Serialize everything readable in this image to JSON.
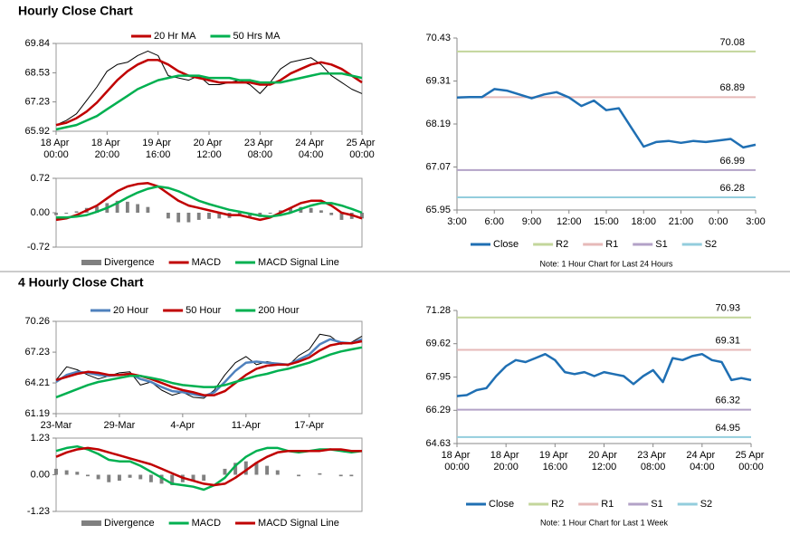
{
  "sections": [
    "Hourly Close Chart",
    "4 Hourly Close Chart"
  ],
  "chart_data": [
    {
      "type": "line",
      "legend": "top",
      "categories": [
        "18 Apr 00:00",
        null,
        null,
        null,
        null,
        "18 Apr 20:00",
        null,
        null,
        null,
        null,
        "19 Apr 16:00",
        null,
        null,
        null,
        null,
        "20 Apr 12:00",
        null,
        null,
        null,
        null,
        "23 Apr 08:00",
        null,
        null,
        null,
        null,
        "24 Apr 04:00",
        null,
        null,
        null,
        null,
        "25 Apr 00:00"
      ],
      "ylim": [
        65.92,
        69.84
      ],
      "yticks": [
        69.84,
        68.53,
        67.23,
        65.92
      ],
      "price": {
        "color": "#000000",
        "values": [
          66.2,
          66.4,
          66.7,
          67.3,
          67.9,
          68.6,
          68.9,
          69.0,
          69.3,
          69.5,
          69.3,
          68.4,
          68.3,
          68.2,
          68.4,
          68.0,
          68.0,
          68.1,
          68.2,
          68.0,
          67.6,
          68.1,
          68.7,
          69.0,
          69.1,
          69.2,
          68.9,
          68.4,
          68.1,
          67.8,
          67.6
        ]
      },
      "series": [
        {
          "name": "20 Hr MA",
          "color": "#c00000",
          "values": [
            66.2,
            66.3,
            66.5,
            66.8,
            67.2,
            67.7,
            68.2,
            68.6,
            68.9,
            69.1,
            69.1,
            68.9,
            68.6,
            68.4,
            68.3,
            68.2,
            68.1,
            68.1,
            68.1,
            68.1,
            68.0,
            68.0,
            68.2,
            68.5,
            68.7,
            68.9,
            69.0,
            68.9,
            68.7,
            68.4,
            68.1
          ]
        },
        {
          "name": "50 Hrs MA",
          "color": "#00b050",
          "values": [
            66.0,
            66.1,
            66.2,
            66.4,
            66.6,
            66.9,
            67.2,
            67.5,
            67.8,
            68.0,
            68.2,
            68.3,
            68.4,
            68.4,
            68.4,
            68.3,
            68.3,
            68.3,
            68.2,
            68.2,
            68.1,
            68.1,
            68.1,
            68.2,
            68.3,
            68.4,
            68.5,
            68.5,
            68.5,
            68.4,
            68.3
          ]
        }
      ]
    },
    {
      "type": "line",
      "legend": "bottom",
      "categories": [
        null,
        null,
        null,
        null,
        null,
        null,
        null,
        null,
        null,
        null,
        null,
        null,
        null,
        null,
        null,
        null,
        null,
        null,
        null,
        null,
        null,
        null,
        null,
        null,
        null,
        null,
        null,
        null,
        null,
        null,
        null
      ],
      "ylim": [
        -0.72,
        0.72
      ],
      "yticks": [
        0.72,
        {
          "value": 0,
          "label": "0.00"
        },
        -0.72
      ],
      "series": [
        {
          "name": "Divergence",
          "kind": "bar",
          "color": "#808080",
          "values": [
            -0.05,
            -0.02,
            0.03,
            0.1,
            0.13,
            0.2,
            0.25,
            0.23,
            0.18,
            0.12,
            0.0,
            -0.12,
            -0.2,
            -0.2,
            -0.15,
            -0.13,
            -0.12,
            -0.11,
            -0.07,
            -0.08,
            -0.09,
            -0.02,
            0.05,
            0.1,
            0.12,
            0.1,
            0.05,
            -0.05,
            -0.15,
            -0.13,
            -0.12
          ]
        },
        {
          "name": "MACD",
          "color": "#c00000",
          "values": [
            -0.15,
            -0.12,
            -0.05,
            0.05,
            0.15,
            0.3,
            0.45,
            0.55,
            0.6,
            0.62,
            0.55,
            0.4,
            0.25,
            0.15,
            0.1,
            0.05,
            0.0,
            -0.05,
            -0.05,
            -0.1,
            -0.15,
            -0.1,
            0.0,
            0.1,
            0.2,
            0.25,
            0.25,
            0.15,
            0.0,
            -0.05,
            -0.12
          ]
        },
        {
          "name": "MACD Signal Line",
          "color": "#00b050",
          "values": [
            -0.1,
            -0.1,
            -0.08,
            -0.05,
            0.02,
            0.1,
            0.2,
            0.32,
            0.42,
            0.5,
            0.55,
            0.52,
            0.45,
            0.35,
            0.25,
            0.18,
            0.12,
            0.06,
            0.02,
            -0.02,
            -0.06,
            -0.08,
            -0.05,
            0.0,
            0.08,
            0.15,
            0.2,
            0.2,
            0.15,
            0.08,
            0.0
          ]
        }
      ]
    },
    {
      "type": "line",
      "legend": "bottom",
      "note": "Note: 1 Hour Chart for Last 24 Hours",
      "categories": [
        "3:00",
        null,
        null,
        "6:00",
        null,
        null,
        "9:00",
        null,
        null,
        "12:00",
        null,
        null,
        "15:00",
        null,
        null,
        "18:00",
        null,
        null,
        "21:00",
        null,
        null,
        "0:00",
        null,
        null,
        "3:00"
      ],
      "ylim": [
        65.95,
        70.43
      ],
      "yticks": [
        70.43,
        69.31,
        68.19,
        67.07,
        65.95
      ],
      "series": [
        {
          "name": "Close",
          "color": "#1f6fb3",
          "values": [
            68.88,
            68.89,
            68.89,
            69.1,
            69.06,
            68.96,
            68.86,
            68.96,
            69.02,
            68.88,
            68.66,
            68.8,
            68.55,
            68.6,
            68.1,
            67.6,
            67.72,
            67.75,
            67.7,
            67.75,
            67.72,
            67.76,
            67.8,
            67.58,
            67.65
          ]
        }
      ],
      "levels": [
        {
          "name": "R2",
          "color": "#c3d69b",
          "value": 70.08
        },
        {
          "name": "R1",
          "color": "#e6b9b8",
          "value": 68.89
        },
        {
          "name": "S1",
          "color": "#b3a2c7",
          "value": 66.99
        },
        {
          "name": "S2",
          "color": "#93cddd",
          "value": 66.28
        }
      ]
    },
    {
      "type": "line",
      "legend": "top",
      "categories": [
        "23-Mar",
        null,
        null,
        null,
        null,
        null,
        "29-Mar",
        null,
        null,
        null,
        null,
        null,
        "4-Apr",
        null,
        null,
        null,
        null,
        null,
        "11-Apr",
        null,
        null,
        null,
        null,
        null,
        "17-Apr",
        null,
        null,
        null,
        null,
        null
      ],
      "ylim": [
        61.19,
        70.26
      ],
      "yticks": [
        70.26,
        67.23,
        64.21,
        61.19
      ],
      "price": {
        "color": "#000000",
        "values": [
          64.5,
          65.8,
          65.5,
          65.0,
          64.6,
          64.9,
          65.2,
          65.3,
          64.0,
          64.3,
          63.5,
          63.0,
          63.3,
          62.8,
          62.7,
          63.5,
          65.0,
          66.2,
          66.8,
          66.0,
          66.3,
          66.1,
          65.9,
          66.9,
          67.5,
          69.0,
          68.8,
          68.0,
          68.2,
          68.8
        ]
      },
      "series": [
        {
          "name": "20 Hour",
          "color": "#4f81bd",
          "values": [
            64.3,
            65.0,
            65.3,
            65.2,
            65.0,
            64.9,
            65.0,
            65.1,
            64.6,
            64.3,
            63.8,
            63.4,
            63.3,
            63.1,
            62.9,
            63.3,
            64.3,
            65.4,
            66.2,
            66.3,
            66.2,
            66.1,
            66.0,
            66.5,
            67.0,
            68.0,
            68.5,
            68.2,
            68.1,
            68.5
          ]
        },
        {
          "name": "50 Hour",
          "color": "#c00000",
          "values": [
            64.5,
            64.8,
            65.1,
            65.3,
            65.2,
            65.0,
            65.0,
            65.1,
            64.9,
            64.6,
            64.2,
            63.8,
            63.5,
            63.3,
            63.0,
            63.0,
            63.4,
            64.2,
            65.0,
            65.6,
            65.9,
            66.0,
            66.0,
            66.3,
            66.7,
            67.4,
            67.9,
            68.1,
            68.1,
            68.3
          ]
        },
        {
          "name": "200 Hour",
          "color": "#00b050",
          "values": [
            62.8,
            63.2,
            63.6,
            64.0,
            64.3,
            64.5,
            64.7,
            64.9,
            64.9,
            64.7,
            64.5,
            64.2,
            64.0,
            63.9,
            63.8,
            63.8,
            64.0,
            64.3,
            64.6,
            64.9,
            65.1,
            65.4,
            65.6,
            65.9,
            66.2,
            66.6,
            67.0,
            67.3,
            67.5,
            67.7
          ]
        }
      ]
    },
    {
      "type": "line",
      "legend": "bottom",
      "categories": [
        null,
        null,
        null,
        null,
        null,
        null,
        null,
        null,
        null,
        null,
        null,
        null,
        null,
        null,
        null,
        null,
        null,
        null,
        null,
        null,
        null,
        null,
        null,
        null,
        null,
        null,
        null,
        null,
        null,
        null
      ],
      "ylim": [
        -1.23,
        1.23
      ],
      "yticks": [
        1.23,
        {
          "value": 0,
          "label": "0.00"
        },
        -1.23
      ],
      "series": [
        {
          "name": "Divergence",
          "kind": "bar",
          "color": "#808080",
          "values": [
            0.2,
            0.15,
            0.1,
            -0.05,
            -0.15,
            -0.25,
            -0.2,
            -0.1,
            -0.15,
            -0.25,
            -0.3,
            -0.35,
            -0.25,
            -0.2,
            -0.2,
            0.0,
            0.2,
            0.4,
            0.45,
            0.4,
            0.3,
            0.15,
            0.0,
            -0.05,
            0.0,
            0.05,
            0.0,
            -0.05,
            -0.05,
            0.0
          ]
        },
        {
          "name": "MACD",
          "color": "#00b050",
          "values": [
            0.8,
            0.9,
            0.95,
            0.85,
            0.7,
            0.5,
            0.45,
            0.45,
            0.3,
            0.1,
            -0.1,
            -0.3,
            -0.35,
            -0.4,
            -0.5,
            -0.35,
            -0.1,
            0.3,
            0.6,
            0.8,
            0.9,
            0.9,
            0.8,
            0.75,
            0.8,
            0.85,
            0.85,
            0.8,
            0.75,
            0.8
          ]
        },
        {
          "name": "MACD Signal Line",
          "color": "#c00000",
          "values": [
            0.6,
            0.75,
            0.85,
            0.9,
            0.85,
            0.75,
            0.65,
            0.55,
            0.45,
            0.35,
            0.2,
            0.05,
            -0.1,
            -0.2,
            -0.3,
            -0.35,
            -0.3,
            -0.1,
            0.15,
            0.4,
            0.6,
            0.75,
            0.8,
            0.8,
            0.8,
            0.8,
            0.85,
            0.85,
            0.8,
            0.8
          ]
        }
      ]
    },
    {
      "type": "line",
      "legend": "bottom",
      "note": "Note: 1 Hour Chart for Last 1 Week",
      "categories": [
        "18 Apr 00:00",
        null,
        null,
        null,
        null,
        "18 Apr 20:00",
        null,
        null,
        null,
        null,
        "19 Apr 16:00",
        null,
        null,
        null,
        null,
        "20 Apr 12:00",
        null,
        null,
        null,
        null,
        "23 Apr 08:00",
        null,
        null,
        null,
        null,
        "24 Apr 04:00",
        null,
        null,
        null,
        null,
        "25 Apr 00:00"
      ],
      "ylim": [
        64.63,
        71.28
      ],
      "yticks": [
        71.28,
        69.62,
        67.95,
        66.29,
        64.63
      ],
      "series": [
        {
          "name": "Close",
          "color": "#1f6fb3",
          "values": [
            67.0,
            67.05,
            67.3,
            67.4,
            68.0,
            68.5,
            68.8,
            68.7,
            68.9,
            69.1,
            68.8,
            68.2,
            68.1,
            68.2,
            68.0,
            68.2,
            68.1,
            68.0,
            67.6,
            68.0,
            68.3,
            67.7,
            68.9,
            68.8,
            69.0,
            69.1,
            68.8,
            68.7,
            67.8,
            67.9,
            67.8
          ]
        }
      ],
      "levels": [
        {
          "name": "R2",
          "color": "#c3d69b",
          "value": 70.93
        },
        {
          "name": "R1",
          "color": "#e6b9b8",
          "value": 69.31
        },
        {
          "name": "S1",
          "color": "#b3a2c7",
          "value": 66.32
        },
        {
          "name": "S2",
          "color": "#93cddd",
          "value": 64.95
        }
      ]
    }
  ]
}
